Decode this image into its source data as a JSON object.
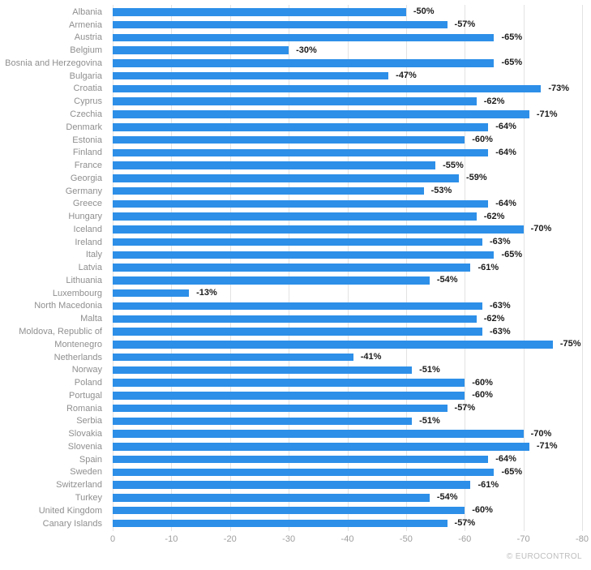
{
  "chart_data": {
    "type": "bar",
    "orientation": "horizontal",
    "title": "",
    "xlabel": "",
    "ylabel": "",
    "xlim": [
      0,
      -80
    ],
    "xticks": [
      0,
      -10,
      -20,
      -30,
      -40,
      -50,
      -60,
      -70,
      -80
    ],
    "grid": true,
    "legend": "none",
    "bar_color": "#2d8fe8",
    "gridline_color": "#e3e3e3",
    "category_label_color": "#8f8f8f",
    "value_label_color": "#1c1c1c",
    "tick_label_color": "#9e9e9e",
    "categories": [
      "Albania",
      "Armenia",
      "Austria",
      "Belgium",
      "Bosnia and Herzegovina",
      "Bulgaria",
      "Croatia",
      "Cyprus",
      "Czechia",
      "Denmark",
      "Estonia",
      "Finland",
      "France",
      "Georgia",
      "Germany",
      "Greece",
      "Hungary",
      "Iceland",
      "Ireland",
      "Italy",
      "Latvia",
      "Lithuania",
      "Luxembourg",
      "North Macedonia",
      "Malta",
      "Moldova, Republic of",
      "Montenegro",
      "Netherlands",
      "Norway",
      "Poland",
      "Portugal",
      "Romania",
      "Serbia",
      "Slovakia",
      "Slovenia",
      "Spain",
      "Sweden",
      "Switzerland",
      "Turkey",
      "United Kingdom",
      "Canary Islands"
    ],
    "values": [
      -50,
      -57,
      -65,
      -30,
      -65,
      -47,
      -73,
      -62,
      -71,
      -64,
      -60,
      -64,
      -55,
      -59,
      -53,
      -64,
      -62,
      -70,
      -63,
      -65,
      -61,
      -54,
      -13,
      -63,
      -62,
      -63,
      -75,
      -41,
      -51,
      -60,
      -60,
      -57,
      -51,
      -70,
      -71,
      -64,
      -65,
      -61,
      -54,
      -60,
      -57
    ],
    "value_labels": [
      "-50%",
      "-57%",
      "-65%",
      "-30%",
      "-65%",
      "-47%",
      "-73%",
      "-62%",
      "-71%",
      "-64%",
      "-60%",
      "-64%",
      "-55%",
      "-59%",
      "-53%",
      "-64%",
      "-62%",
      "-70%",
      "-63%",
      "-65%",
      "-61%",
      "-54%",
      "-13%",
      "-63%",
      "-62%",
      "-63%",
      "-75%",
      "-41%",
      "-51%",
      "-60%",
      "-60%",
      "-57%",
      "-51%",
      "-70%",
      "-71%",
      "-64%",
      "-65%",
      "-61%",
      "-54%",
      "-60%",
      "-57%"
    ]
  },
  "footer": {
    "credit": "© EUROCONTROL"
  }
}
